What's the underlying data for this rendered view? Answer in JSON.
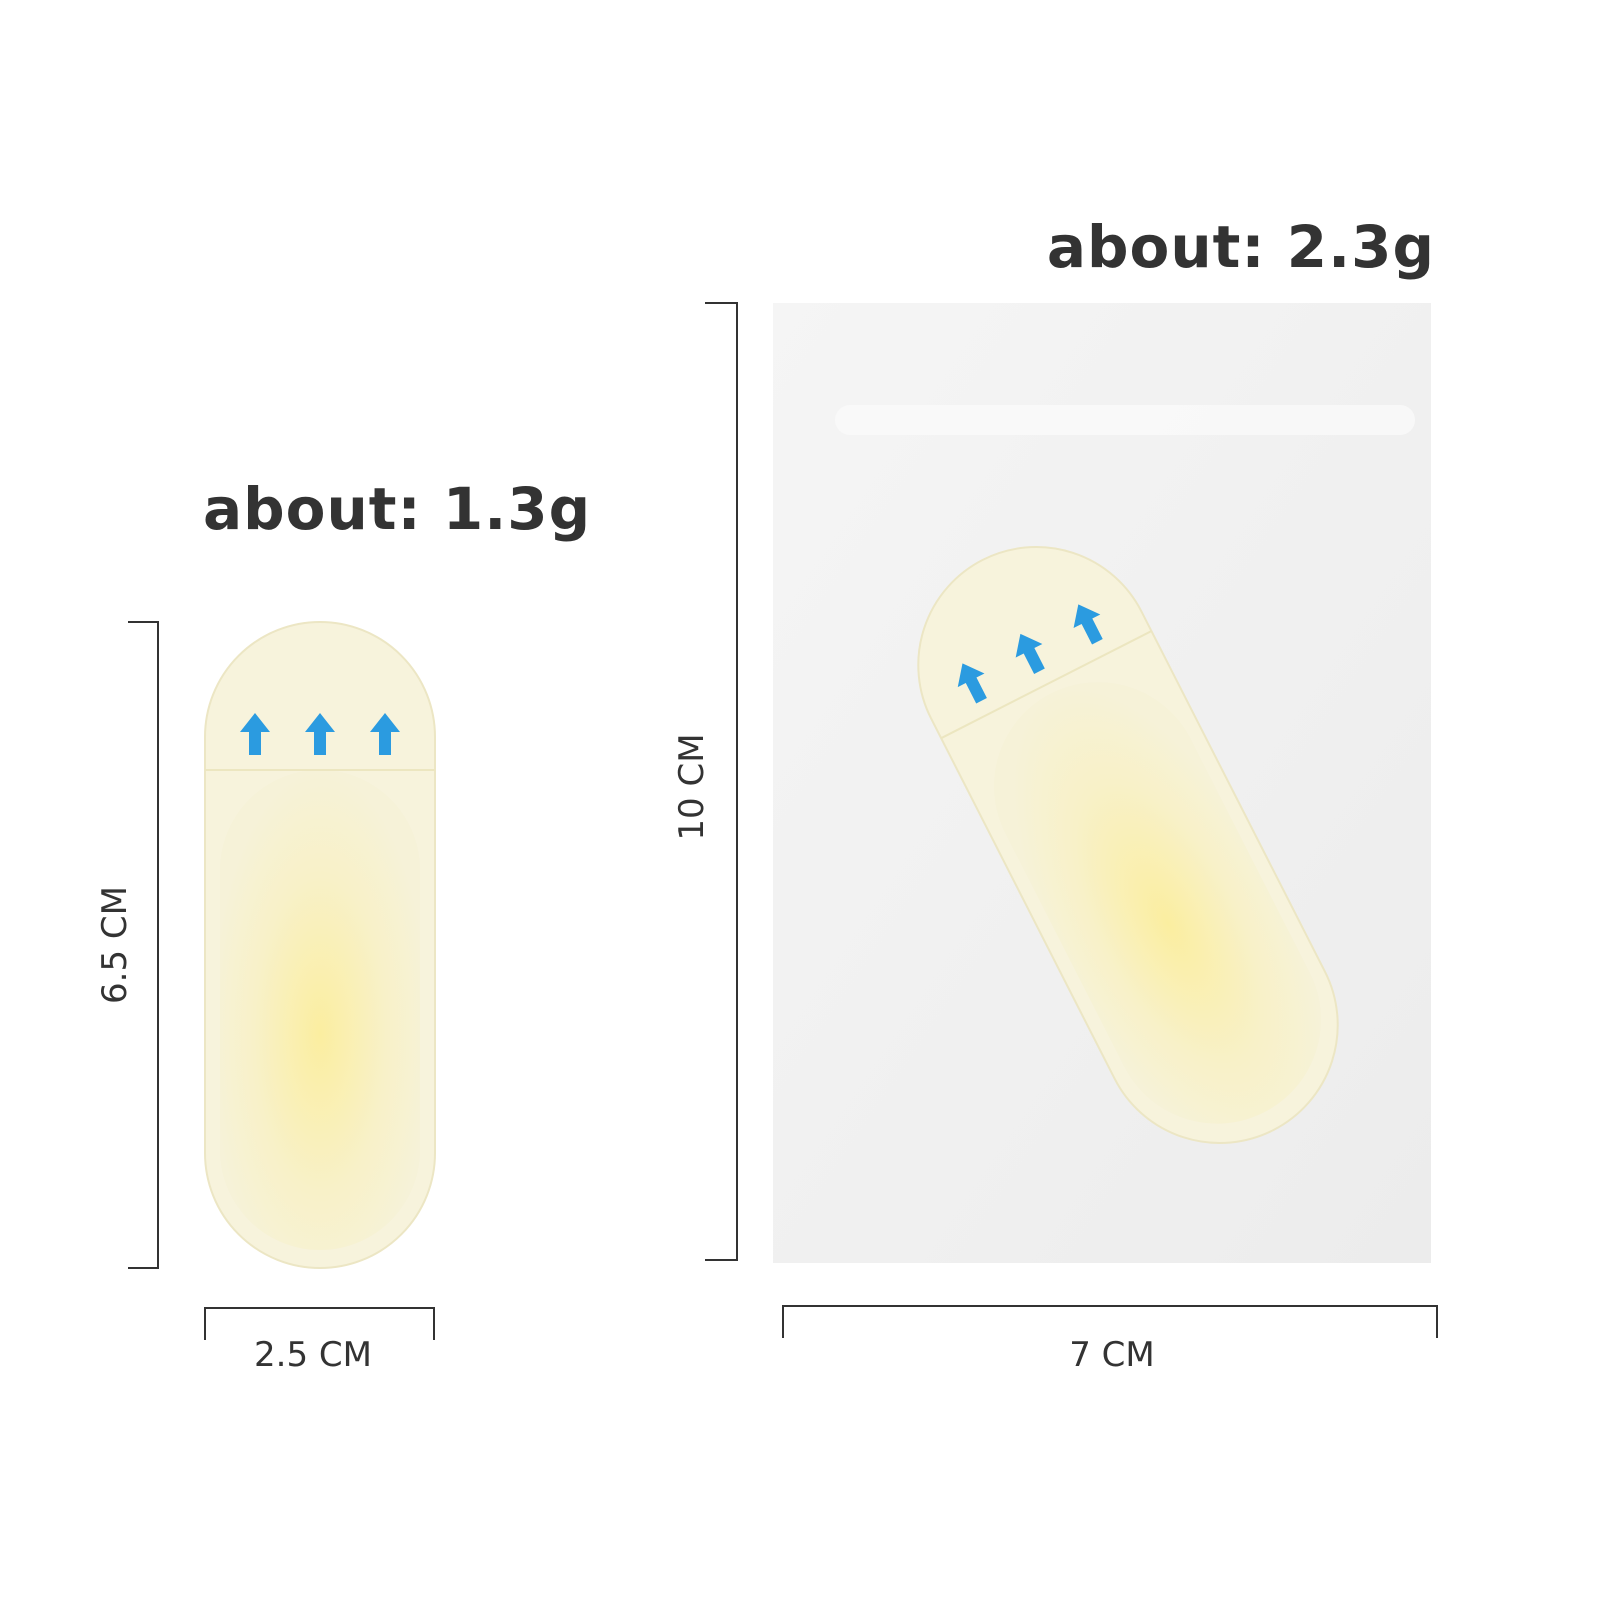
{
  "small_patch": {
    "weight_label": "about: 1.3g",
    "height_label": "6.5 CM",
    "width_label": "2.5 CM"
  },
  "large_patch": {
    "weight_label": "about: 2.3g",
    "height_label": "10 CM",
    "width_label": "7 CM"
  },
  "colors": {
    "text": "#333333",
    "patch": "#f7f3d2",
    "patch_center": "#fbefa6",
    "arrow": "#2b9be0",
    "packet": "#f1f1f1"
  }
}
